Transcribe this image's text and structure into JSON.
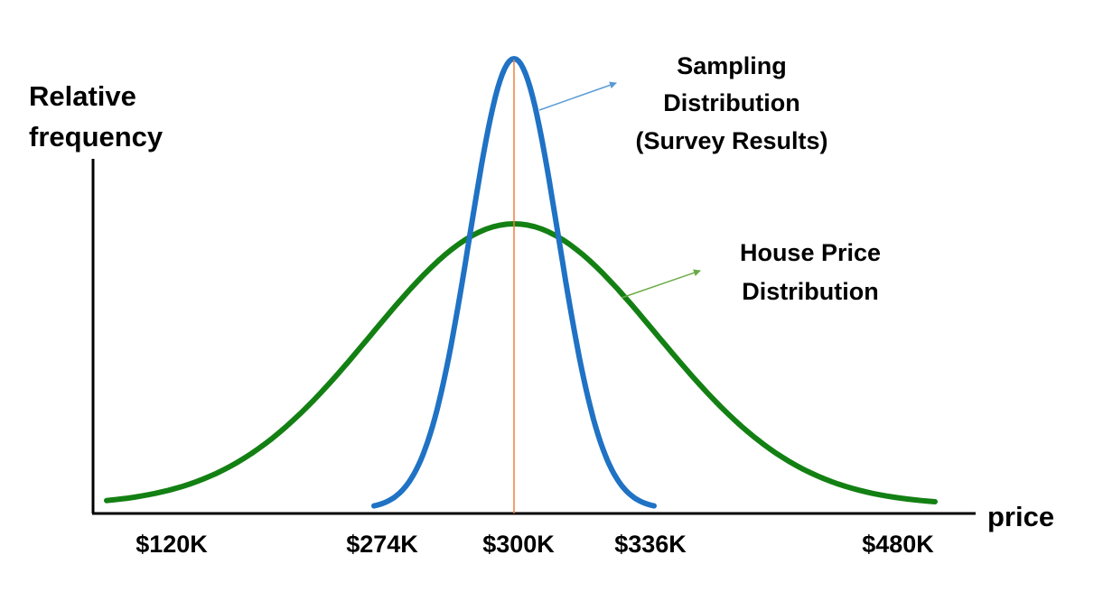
{
  "chart_data": {
    "type": "line",
    "ylabel": [
      "Relative",
      "frequency"
    ],
    "xlabel": "price",
    "ticks": [
      "$120K",
      "$274K",
      "$300K",
      "$336K",
      "$480K"
    ],
    "center_value": "$300K",
    "series": [
      {
        "name": [
          "Sampling",
          "Distribution",
          "(Survey Results)"
        ],
        "color": "#1f72c4",
        "x_from": "$274K",
        "x_to": "$336K"
      },
      {
        "name": [
          "House Price",
          "Distribution"
        ],
        "color": "#138013",
        "x_from": "$120K",
        "x_to": "$480K"
      }
    ],
    "center_line_color": "#f08040"
  }
}
